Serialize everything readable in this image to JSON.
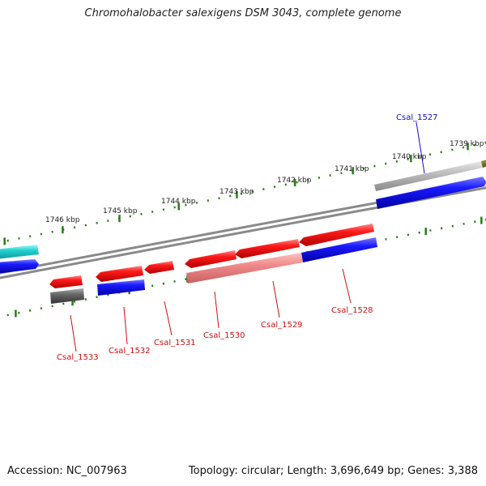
{
  "title": "Chromohalobacter salexigens DSM 3043, complete genome",
  "footer": {
    "accession": "Accession: NC_007963",
    "summary": "Topology: circular; Length: 3,696,649 bp; Genes: 3,388"
  },
  "scale_labels": [
    "1746 kbp",
    "1745 kbp",
    "1744 kbp",
    "1743 kbp",
    "1742 kbp",
    "1741 kbp",
    "1740 kbp",
    "1739 kbp"
  ],
  "gene_labels": [
    {
      "name": "Csal_1527",
      "strand": "top"
    },
    {
      "name": "Csal_1528",
      "strand": "bottom"
    },
    {
      "name": "Csal_1529",
      "strand": "bottom"
    },
    {
      "name": "Csal_1530",
      "strand": "bottom"
    },
    {
      "name": "Csal_1531",
      "strand": "bottom"
    },
    {
      "name": "Csal_1532",
      "strand": "bottom"
    },
    {
      "name": "Csal_1533",
      "strand": "bottom"
    }
  ],
  "colors": {
    "backbone": "#8a8a8a",
    "ticks": "#2a7a1a",
    "cds_red": "#ee1111",
    "cds_pink": "#f08080",
    "gene_blue": "#1a1aee",
    "gene_cyan": "#22cccc",
    "gene_gray": "#666666",
    "gene_lightgray": "#bbbbbb",
    "gene_olive": "#6b7a1a",
    "label_red": "#cc1111",
    "label_blue": "#1111cc"
  }
}
